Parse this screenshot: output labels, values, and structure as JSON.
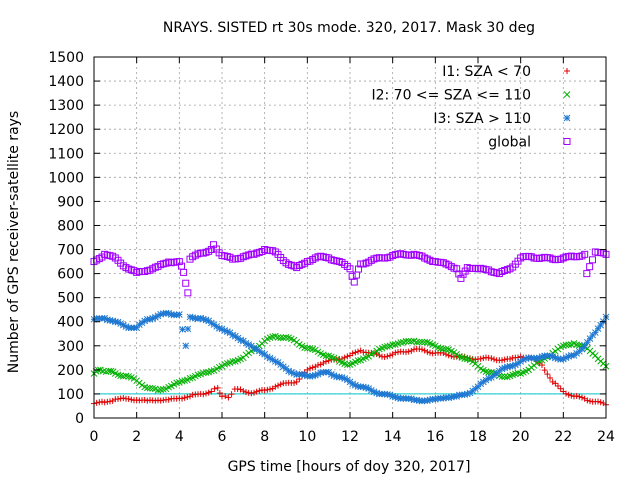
{
  "chart_data": {
    "type": "scatter",
    "title": "NRAYS. SISTED rt 30s mode. 320, 2017. Mask 30 deg",
    "xlabel": "GPS time [hours of doy 320, 2017]",
    "ylabel": "Number of GPS receiver-satellite rays",
    "xlim": [
      0,
      24
    ],
    "ylim": [
      0,
      1500
    ],
    "xticks": [
      0,
      2,
      4,
      6,
      8,
      10,
      12,
      14,
      16,
      18,
      20,
      22,
      24
    ],
    "yticks": [
      0,
      100,
      200,
      300,
      400,
      500,
      600,
      700,
      800,
      900,
      1000,
      1100,
      1200,
      1300,
      1400,
      1500
    ],
    "grid": true,
    "legend_position": "top-right",
    "reference_line": {
      "y": 100,
      "color": "#00c8c8"
    },
    "series": [
      {
        "name": "I1: SZA < 70",
        "marker": "plus",
        "color": "#e00000",
        "points": [
          [
            0,
            60
          ],
          [
            0.5,
            65
          ],
          [
            1,
            78
          ],
          [
            1.5,
            80
          ],
          [
            2,
            75
          ],
          [
            2.5,
            72
          ],
          [
            3,
            74
          ],
          [
            3.5,
            76
          ],
          [
            4,
            82
          ],
          [
            4.5,
            90
          ],
          [
            5,
            100
          ],
          [
            5.5,
            110
          ],
          [
            5.8,
            125
          ],
          [
            6,
            90
          ],
          [
            6.3,
            85
          ],
          [
            6.6,
            120
          ],
          [
            7,
            112
          ],
          [
            7.5,
            105
          ],
          [
            8,
            115
          ],
          [
            8.5,
            130
          ],
          [
            9,
            145
          ],
          [
            9.5,
            150
          ],
          [
            10,
            200
          ],
          [
            10.5,
            220
          ],
          [
            11,
            238
          ],
          [
            11.5,
            245
          ],
          [
            12,
            260
          ],
          [
            12.5,
            280
          ],
          [
            13,
            270
          ],
          [
            13.5,
            255
          ],
          [
            14,
            265
          ],
          [
            14.5,
            275
          ],
          [
            15,
            285
          ],
          [
            15.5,
            280
          ],
          [
            16,
            270
          ],
          [
            16.5,
            265
          ],
          [
            17,
            255
          ],
          [
            17.5,
            250
          ],
          [
            18,
            245
          ],
          [
            18.5,
            250
          ],
          [
            19,
            240
          ],
          [
            19.5,
            245
          ],
          [
            20,
            255
          ],
          [
            20.5,
            250
          ],
          [
            21,
            220
          ],
          [
            21.5,
            150
          ],
          [
            22,
            110
          ],
          [
            22.5,
            90
          ],
          [
            23,
            80
          ],
          [
            23.5,
            68
          ],
          [
            24,
            55
          ]
        ]
      },
      {
        "name": "I2: 70 <= SZA <= 110",
        "marker": "cross",
        "color": "#00b000",
        "points": [
          [
            0,
            185
          ],
          [
            0.3,
            200
          ],
          [
            0.7,
            195
          ],
          [
            1,
            185
          ],
          [
            1.5,
            175
          ],
          [
            2,
            155
          ],
          [
            2.5,
            125
          ],
          [
            3,
            115
          ],
          [
            3.5,
            128
          ],
          [
            4,
            148
          ],
          [
            4.5,
            165
          ],
          [
            5,
            182
          ],
          [
            5.5,
            195
          ],
          [
            6,
            215
          ],
          [
            6.5,
            235
          ],
          [
            7,
            250
          ],
          [
            7.5,
            285
          ],
          [
            8,
            320
          ],
          [
            8.5,
            340
          ],
          [
            9,
            335
          ],
          [
            9.5,
            315
          ],
          [
            10,
            290
          ],
          [
            10.5,
            275
          ],
          [
            11,
            258
          ],
          [
            11.5,
            235
          ],
          [
            12,
            222
          ],
          [
            12.5,
            240
          ],
          [
            13,
            265
          ],
          [
            13.5,
            290
          ],
          [
            14,
            305
          ],
          [
            14.5,
            315
          ],
          [
            15,
            320
          ],
          [
            15.5,
            315
          ],
          [
            16,
            300
          ],
          [
            16.5,
            285
          ],
          [
            17,
            265
          ],
          [
            17.5,
            245
          ],
          [
            18,
            215
          ],
          [
            18.5,
            190
          ],
          [
            19,
            175
          ],
          [
            19.5,
            175
          ],
          [
            20,
            185
          ],
          [
            20.5,
            210
          ],
          [
            21,
            240
          ],
          [
            21.5,
            270
          ],
          [
            22,
            300
          ],
          [
            22.5,
            310
          ],
          [
            23,
            295
          ],
          [
            23.5,
            260
          ],
          [
            24,
            215
          ]
        ]
      },
      {
        "name": "I3: SZA > 110",
        "marker": "star",
        "color": "#1e78d2",
        "points": [
          [
            0,
            410
          ],
          [
            0.5,
            415
          ],
          [
            1,
            400
          ],
          [
            1.5,
            380
          ],
          [
            2,
            375
          ],
          [
            2.5,
            410
          ],
          [
            3,
            425
          ],
          [
            3.5,
            435
          ],
          [
            4,
            430
          ],
          [
            4.3,
            300
          ],
          [
            4.4,
            370
          ],
          [
            4.5,
            420
          ],
          [
            5,
            415
          ],
          [
            5.5,
            395
          ],
          [
            6,
            370
          ],
          [
            6.5,
            345
          ],
          [
            7,
            320
          ],
          [
            7.5,
            290
          ],
          [
            8,
            265
          ],
          [
            8.5,
            235
          ],
          [
            9,
            205
          ],
          [
            9.5,
            180
          ],
          [
            10,
            175
          ],
          [
            10.5,
            182
          ],
          [
            11,
            190
          ],
          [
            11.5,
            170
          ],
          [
            12,
            150
          ],
          [
            12.5,
            130
          ],
          [
            13,
            115
          ],
          [
            13.5,
            100
          ],
          [
            14,
            90
          ],
          [
            14.5,
            82
          ],
          [
            15,
            75
          ],
          [
            15.5,
            72
          ],
          [
            16,
            78
          ],
          [
            16.5,
            85
          ],
          [
            17,
            90
          ],
          [
            17.5,
            100
          ],
          [
            18,
            130
          ],
          [
            18.5,
            165
          ],
          [
            19,
            195
          ],
          [
            19.5,
            215
          ],
          [
            20,
            235
          ],
          [
            20.5,
            250
          ],
          [
            21,
            255
          ],
          [
            21.5,
            255
          ],
          [
            22,
            245
          ],
          [
            22.5,
            260
          ],
          [
            23,
            300
          ],
          [
            23.5,
            355
          ],
          [
            24,
            420
          ]
        ]
      },
      {
        "name": "global",
        "marker": "square",
        "color": "#a000ff",
        "points": [
          [
            0,
            650
          ],
          [
            0.5,
            680
          ],
          [
            1,
            665
          ],
          [
            1.5,
            625
          ],
          [
            2,
            605
          ],
          [
            2.5,
            612
          ],
          [
            3,
            630
          ],
          [
            3.5,
            648
          ],
          [
            4,
            650
          ],
          [
            4.2,
            605
          ],
          [
            4.3,
            560
          ],
          [
            4.4,
            520
          ],
          [
            4.5,
            660
          ],
          [
            5,
            685
          ],
          [
            5.5,
            700
          ],
          [
            5.6,
            720
          ],
          [
            6,
            675
          ],
          [
            6.5,
            660
          ],
          [
            7,
            670
          ],
          [
            7.5,
            680
          ],
          [
            8,
            700
          ],
          [
            8.5,
            690
          ],
          [
            9,
            645
          ],
          [
            9.5,
            625
          ],
          [
            10,
            650
          ],
          [
            10.5,
            670
          ],
          [
            11,
            665
          ],
          [
            11.5,
            650
          ],
          [
            12,
            620
          ],
          [
            12.2,
            565
          ],
          [
            12.5,
            640
          ],
          [
            13,
            655
          ],
          [
            13.5,
            665
          ],
          [
            14,
            675
          ],
          [
            14.5,
            680
          ],
          [
            15,
            680
          ],
          [
            15.5,
            665
          ],
          [
            16,
            650
          ],
          [
            16.5,
            640
          ],
          [
            17,
            620
          ],
          [
            17.2,
            580
          ],
          [
            17.5,
            625
          ],
          [
            18,
            620
          ],
          [
            18.5,
            615
          ],
          [
            19,
            600
          ],
          [
            19.5,
            620
          ],
          [
            20,
            665
          ],
          [
            20.5,
            670
          ],
          [
            21,
            665
          ],
          [
            21.5,
            660
          ],
          [
            22,
            665
          ],
          [
            22.5,
            670
          ],
          [
            23,
            680
          ],
          [
            23.1,
            600
          ],
          [
            23.5,
            690
          ],
          [
            24,
            680
          ]
        ]
      }
    ]
  }
}
